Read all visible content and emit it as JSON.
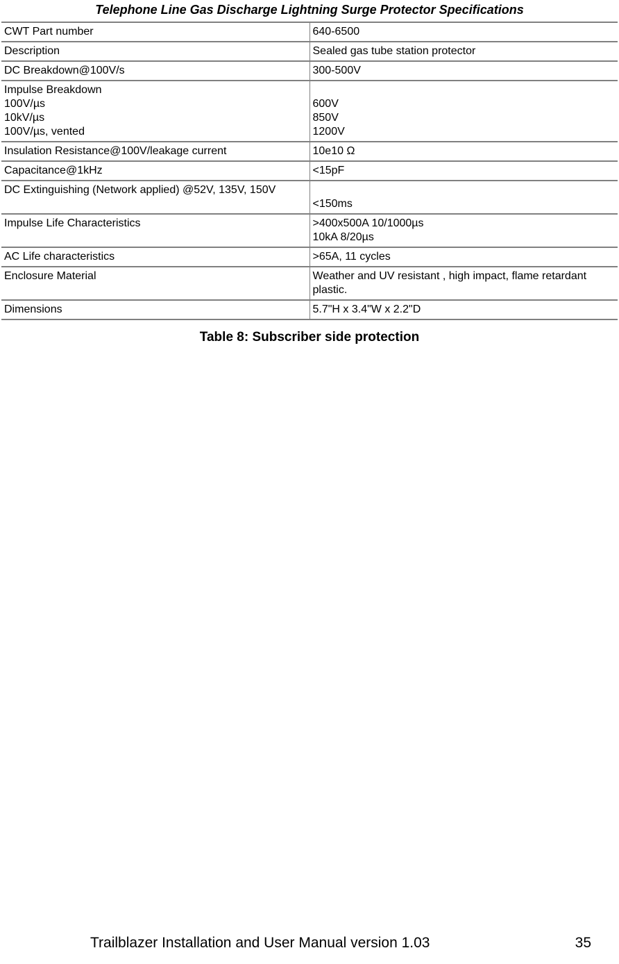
{
  "title": "Telephone Line Gas Discharge Lightning Surge Protector Specifications",
  "rows": [
    {
      "label": "CWT Part number",
      "value": "640-6500"
    },
    {
      "label": "Description",
      "value": "Sealed gas tube station protector"
    },
    {
      "label": "DC Breakdown@100V/s",
      "value": "300-500V"
    },
    {
      "label": "Impulse Breakdown\n100V/µs\n10kV/µs\n100V/µs, vented",
      "value": "\n600V\n850V\n1200V"
    },
    {
      "label": "Insulation Resistance@100V/leakage current",
      "value": "10e10 Ω"
    },
    {
      "label": "Capacitance@1kHz",
      "value": "<15pF"
    },
    {
      "label": "DC Extinguishing (Network applied) @52V, 135V, 150V",
      "value": "\n<150ms"
    },
    {
      "label": "Impulse Life Characteristics",
      "value": ">400x500A 10/1000µs\n10kA 8/20µs"
    },
    {
      "label": "AC Life characteristics",
      "value": ">65A, 11 cycles"
    },
    {
      "label": "Enclosure Material",
      "value": "Weather and UV resistant , high impact, flame retardant plastic."
    },
    {
      "label": "Dimensions",
      "value": "5.7\"H x 3.4\"W x 2.2\"D"
    }
  ],
  "caption": "Table 8: Subscriber side protection",
  "footer": {
    "text": "Trailblazer Installation and User Manual version 1.03",
    "page": "35"
  }
}
